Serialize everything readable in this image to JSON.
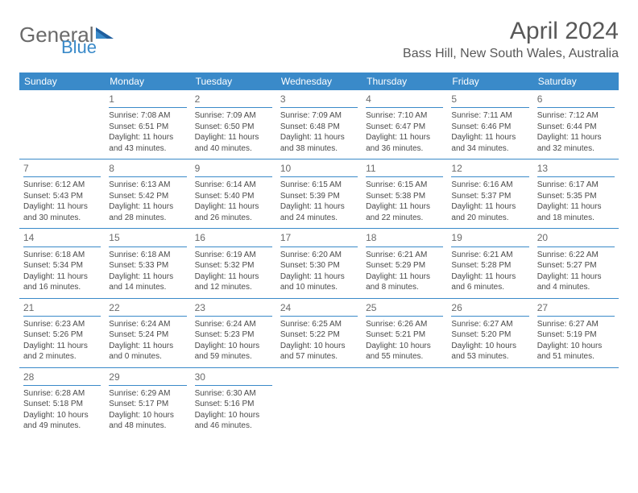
{
  "colors": {
    "brand_blue": "#3a8ac9",
    "text_gray": "#585858",
    "cell_text": "#4a4a4a",
    "logo_gray": "#6a6a6a",
    "background": "#ffffff"
  },
  "logo": {
    "word1": "General",
    "word2": "Blue"
  },
  "title": "April 2024",
  "location": "Bass Hill, New South Wales, Australia",
  "days_of_week": [
    "Sunday",
    "Monday",
    "Tuesday",
    "Wednesday",
    "Thursday",
    "Friday",
    "Saturday"
  ],
  "layout": {
    "columns": 7,
    "rows": 5,
    "first_weekday_index": 1,
    "cell_fontsize": 10,
    "daynum_fontsize": 12,
    "dow_fontsize": 12
  },
  "weeks": [
    [
      null,
      {
        "n": "1",
        "l1": "Sunrise: 7:08 AM",
        "l2": "Sunset: 6:51 PM",
        "l3": "Daylight: 11 hours",
        "l4": "and 43 minutes."
      },
      {
        "n": "2",
        "l1": "Sunrise: 7:09 AM",
        "l2": "Sunset: 6:50 PM",
        "l3": "Daylight: 11 hours",
        "l4": "and 40 minutes."
      },
      {
        "n": "3",
        "l1": "Sunrise: 7:09 AM",
        "l2": "Sunset: 6:48 PM",
        "l3": "Daylight: 11 hours",
        "l4": "and 38 minutes."
      },
      {
        "n": "4",
        "l1": "Sunrise: 7:10 AM",
        "l2": "Sunset: 6:47 PM",
        "l3": "Daylight: 11 hours",
        "l4": "and 36 minutes."
      },
      {
        "n": "5",
        "l1": "Sunrise: 7:11 AM",
        "l2": "Sunset: 6:46 PM",
        "l3": "Daylight: 11 hours",
        "l4": "and 34 minutes."
      },
      {
        "n": "6",
        "l1": "Sunrise: 7:12 AM",
        "l2": "Sunset: 6:44 PM",
        "l3": "Daylight: 11 hours",
        "l4": "and 32 minutes."
      }
    ],
    [
      {
        "n": "7",
        "l1": "Sunrise: 6:12 AM",
        "l2": "Sunset: 5:43 PM",
        "l3": "Daylight: 11 hours",
        "l4": "and 30 minutes."
      },
      {
        "n": "8",
        "l1": "Sunrise: 6:13 AM",
        "l2": "Sunset: 5:42 PM",
        "l3": "Daylight: 11 hours",
        "l4": "and 28 minutes."
      },
      {
        "n": "9",
        "l1": "Sunrise: 6:14 AM",
        "l2": "Sunset: 5:40 PM",
        "l3": "Daylight: 11 hours",
        "l4": "and 26 minutes."
      },
      {
        "n": "10",
        "l1": "Sunrise: 6:15 AM",
        "l2": "Sunset: 5:39 PM",
        "l3": "Daylight: 11 hours",
        "l4": "and 24 minutes."
      },
      {
        "n": "11",
        "l1": "Sunrise: 6:15 AM",
        "l2": "Sunset: 5:38 PM",
        "l3": "Daylight: 11 hours",
        "l4": "and 22 minutes."
      },
      {
        "n": "12",
        "l1": "Sunrise: 6:16 AM",
        "l2": "Sunset: 5:37 PM",
        "l3": "Daylight: 11 hours",
        "l4": "and 20 minutes."
      },
      {
        "n": "13",
        "l1": "Sunrise: 6:17 AM",
        "l2": "Sunset: 5:35 PM",
        "l3": "Daylight: 11 hours",
        "l4": "and 18 minutes."
      }
    ],
    [
      {
        "n": "14",
        "l1": "Sunrise: 6:18 AM",
        "l2": "Sunset: 5:34 PM",
        "l3": "Daylight: 11 hours",
        "l4": "and 16 minutes."
      },
      {
        "n": "15",
        "l1": "Sunrise: 6:18 AM",
        "l2": "Sunset: 5:33 PM",
        "l3": "Daylight: 11 hours",
        "l4": "and 14 minutes."
      },
      {
        "n": "16",
        "l1": "Sunrise: 6:19 AM",
        "l2": "Sunset: 5:32 PM",
        "l3": "Daylight: 11 hours",
        "l4": "and 12 minutes."
      },
      {
        "n": "17",
        "l1": "Sunrise: 6:20 AM",
        "l2": "Sunset: 5:30 PM",
        "l3": "Daylight: 11 hours",
        "l4": "and 10 minutes."
      },
      {
        "n": "18",
        "l1": "Sunrise: 6:21 AM",
        "l2": "Sunset: 5:29 PM",
        "l3": "Daylight: 11 hours",
        "l4": "and 8 minutes."
      },
      {
        "n": "19",
        "l1": "Sunrise: 6:21 AM",
        "l2": "Sunset: 5:28 PM",
        "l3": "Daylight: 11 hours",
        "l4": "and 6 minutes."
      },
      {
        "n": "20",
        "l1": "Sunrise: 6:22 AM",
        "l2": "Sunset: 5:27 PM",
        "l3": "Daylight: 11 hours",
        "l4": "and 4 minutes."
      }
    ],
    [
      {
        "n": "21",
        "l1": "Sunrise: 6:23 AM",
        "l2": "Sunset: 5:26 PM",
        "l3": "Daylight: 11 hours",
        "l4": "and 2 minutes."
      },
      {
        "n": "22",
        "l1": "Sunrise: 6:24 AM",
        "l2": "Sunset: 5:24 PM",
        "l3": "Daylight: 11 hours",
        "l4": "and 0 minutes."
      },
      {
        "n": "23",
        "l1": "Sunrise: 6:24 AM",
        "l2": "Sunset: 5:23 PM",
        "l3": "Daylight: 10 hours",
        "l4": "and 59 minutes."
      },
      {
        "n": "24",
        "l1": "Sunrise: 6:25 AM",
        "l2": "Sunset: 5:22 PM",
        "l3": "Daylight: 10 hours",
        "l4": "and 57 minutes."
      },
      {
        "n": "25",
        "l1": "Sunrise: 6:26 AM",
        "l2": "Sunset: 5:21 PM",
        "l3": "Daylight: 10 hours",
        "l4": "and 55 minutes."
      },
      {
        "n": "26",
        "l1": "Sunrise: 6:27 AM",
        "l2": "Sunset: 5:20 PM",
        "l3": "Daylight: 10 hours",
        "l4": "and 53 minutes."
      },
      {
        "n": "27",
        "l1": "Sunrise: 6:27 AM",
        "l2": "Sunset: 5:19 PM",
        "l3": "Daylight: 10 hours",
        "l4": "and 51 minutes."
      }
    ],
    [
      {
        "n": "28",
        "l1": "Sunrise: 6:28 AM",
        "l2": "Sunset: 5:18 PM",
        "l3": "Daylight: 10 hours",
        "l4": "and 49 minutes."
      },
      {
        "n": "29",
        "l1": "Sunrise: 6:29 AM",
        "l2": "Sunset: 5:17 PM",
        "l3": "Daylight: 10 hours",
        "l4": "and 48 minutes."
      },
      {
        "n": "30",
        "l1": "Sunrise: 6:30 AM",
        "l2": "Sunset: 5:16 PM",
        "l3": "Daylight: 10 hours",
        "l4": "and 46 minutes."
      },
      null,
      null,
      null,
      null
    ]
  ]
}
